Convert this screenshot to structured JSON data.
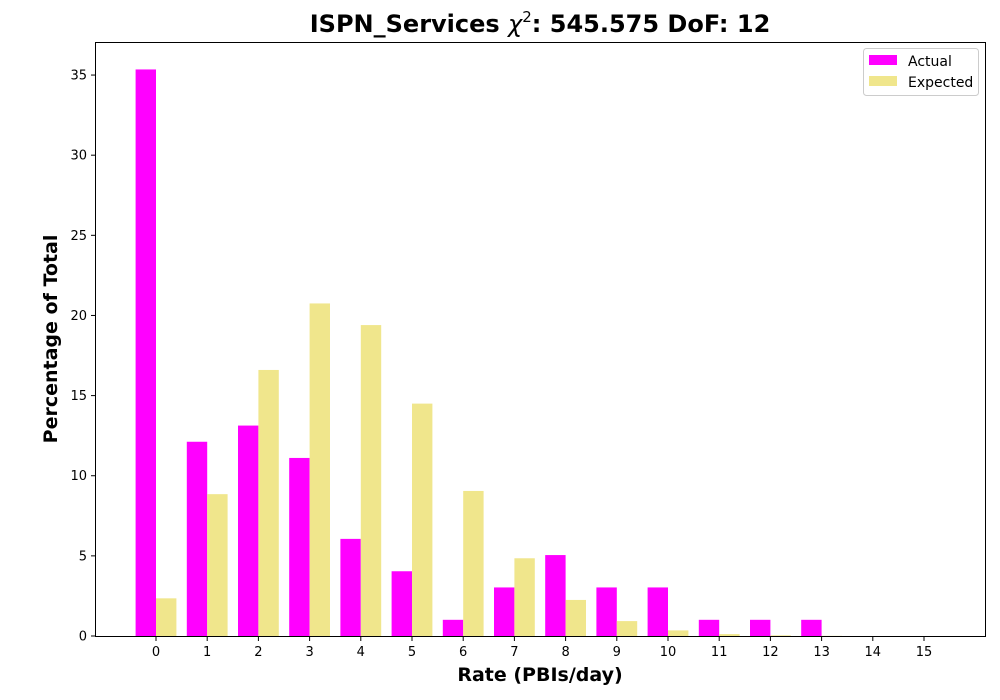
{
  "chart_data": {
    "type": "bar",
    "title_prefix": "ISPN_Services ",
    "title_chi": "χ",
    "title_sup": "2",
    "title_suffix": ": 545.575 DoF: 12",
    "xlabel": "Rate (PBIs/day)",
    "ylabel": "Percentage of Total",
    "categories": [
      "0",
      "1",
      "2",
      "3",
      "4",
      "5",
      "6",
      "7",
      "8",
      "9",
      "10",
      "11",
      "12",
      "13",
      "14",
      "15"
    ],
    "ylim": [
      0,
      37
    ],
    "yticks": [
      0,
      5,
      10,
      15,
      20,
      25,
      30,
      35
    ],
    "grid": false,
    "legend_position": "top-right",
    "series": [
      {
        "name": "Actual",
        "color": "#ff00ff",
        "values": [
          35.35,
          12.12,
          13.13,
          11.11,
          6.06,
          4.04,
          1.01,
          3.03,
          5.05,
          3.03,
          3.03,
          1.01,
          1.01,
          1.01,
          0,
          0
        ]
      },
      {
        "name": "Expected",
        "color": "#f0e68c",
        "values": [
          2.35,
          8.85,
          16.6,
          20.75,
          19.4,
          14.5,
          9.05,
          4.85,
          2.25,
          0.93,
          0.35,
          0.12,
          0.04,
          0.01,
          0,
          0
        ]
      }
    ]
  }
}
